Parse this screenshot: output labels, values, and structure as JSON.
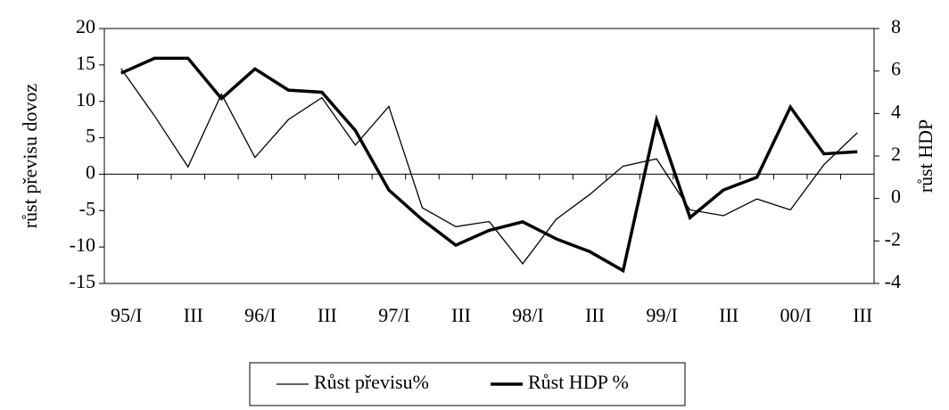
{
  "chart_data": {
    "type": "line",
    "categories": [
      "95/I",
      null,
      "III",
      null,
      "96/I",
      null,
      "III",
      null,
      "97/I",
      null,
      "III",
      null,
      "98/I",
      null,
      "III",
      null,
      "99/I",
      null,
      "III",
      null,
      "00/I",
      null,
      "III"
    ],
    "ylabel": "růst převisu dovoz",
    "y2label": "růst HDP",
    "ylim": [
      -15,
      20
    ],
    "yticks": [
      -15,
      -10,
      -5,
      0,
      5,
      10,
      15,
      20
    ],
    "y2lim": [
      -4,
      8
    ],
    "y2ticks": [
      -4,
      -2,
      0,
      2,
      4,
      6,
      8
    ],
    "legend": "bottom",
    "series": [
      {
        "name": "Růst převisu%",
        "color": "#000000",
        "width": 1.3,
        "values": [
          14.5,
          8,
          1,
          11,
          2.3,
          7.5,
          10.5,
          4,
          9.3,
          -4.6,
          -7.2,
          -6.5,
          -12.3,
          -6.2,
          -2.8,
          1.1,
          2.1,
          -4.9,
          -5.7,
          -3.4,
          -4.9,
          1.3,
          5.7
        ]
      },
      {
        "name": "Růst HDP %",
        "color": "#000000",
        "width": 3.5,
        "axis": "y2",
        "values": [
          5.9,
          6.6,
          6.6,
          4.7,
          6.1,
          5.1,
          5,
          3.2,
          0.4,
          -1,
          -2.2,
          -1.5,
          -1.1,
          -1.9,
          -2.5,
          -3.4,
          3.7,
          -0.9,
          0.4,
          1,
          4.3,
          2.1,
          2.2
        ]
      }
    ]
  }
}
